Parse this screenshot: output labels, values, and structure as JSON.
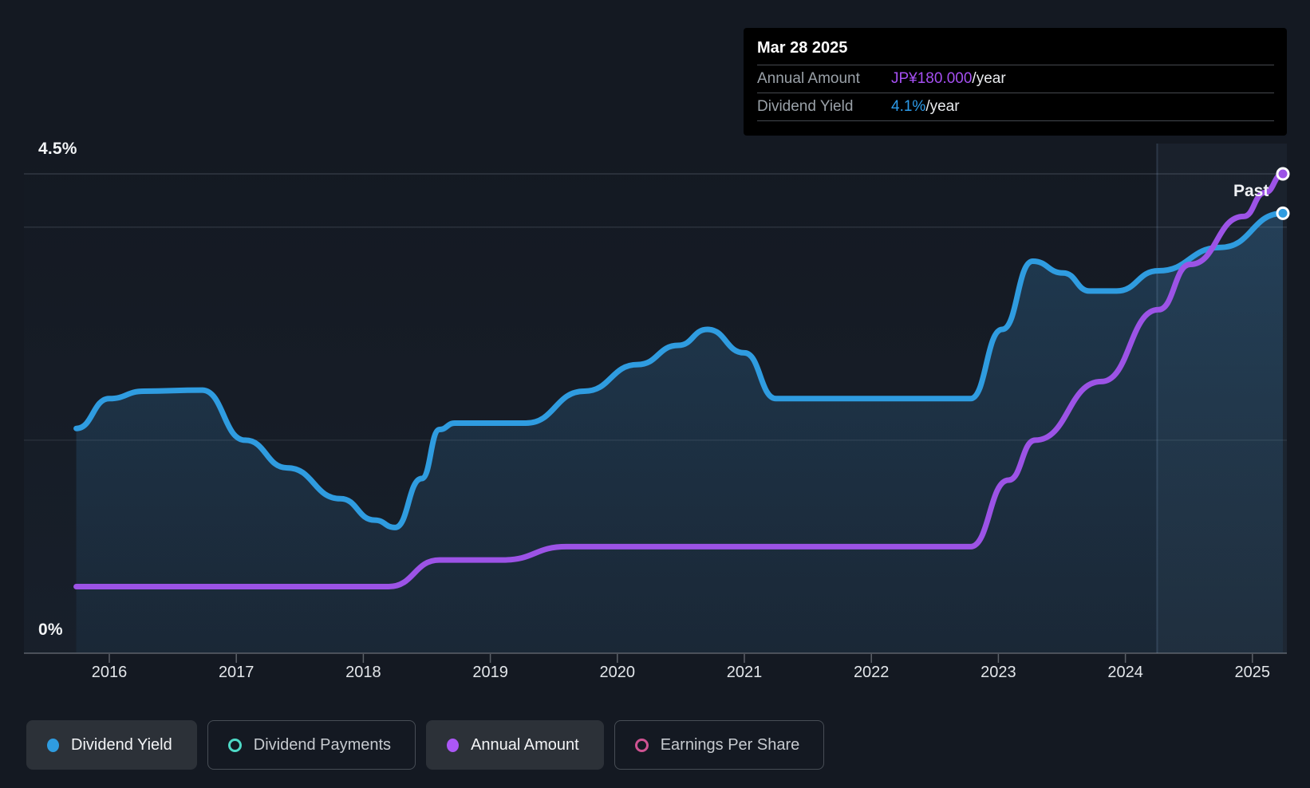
{
  "tooltip": {
    "date": "Mar 28 2025",
    "rows": [
      {
        "label": "Annual Amount",
        "value": "JP¥180.000",
        "suffix": "/year",
        "value_color": "#a54ff2"
      },
      {
        "label": "Dividend Yield",
        "value": "4.1%",
        "suffix": "/year",
        "value_color": "#2d9ceb"
      }
    ]
  },
  "legend": [
    {
      "label": "Dividend Yield",
      "color": "#2f9ce0",
      "marker": "filled",
      "active": true
    },
    {
      "label": "Dividend Payments",
      "color": "#4ed9c6",
      "marker": "outline",
      "active": false
    },
    {
      "label": "Annual Amount",
      "color": "#ab57f5",
      "marker": "filled",
      "active": true
    },
    {
      "label": "Earnings Per Share",
      "color": "#cf5392",
      "marker": "outline",
      "active": false
    }
  ],
  "chart_data": {
    "type": "area",
    "x_range": [
      2015.74,
      2025.28
    ],
    "x_ticks": [
      "2016",
      "2017",
      "2018",
      "2019",
      "2020",
      "2021",
      "2022",
      "2023",
      "2024",
      "2025"
    ],
    "y_axis": {
      "unit": "%",
      "min": 0,
      "max": 4.5,
      "labels": [
        {
          "text": "4.5%",
          "at": 4.5
        },
        {
          "text": "0%",
          "at": 0
        }
      ],
      "gridlines": [
        4.5,
        4.0,
        2.0,
        0
      ]
    },
    "past_band": {
      "label": "Past",
      "from": 2024.25,
      "to": 2025.28
    },
    "series": [
      {
        "name": "Dividend Yield",
        "unit": "%",
        "style": "area-line",
        "color": "#2f9ce0",
        "end_value": 4.1,
        "points": [
          [
            2015.74,
            2.11
          ],
          [
            2016.0,
            2.39
          ],
          [
            2016.27,
            2.46
          ],
          [
            2016.73,
            2.47
          ],
          [
            2017.07,
            2.0
          ],
          [
            2017.4,
            1.74
          ],
          [
            2017.82,
            1.45
          ],
          [
            2018.09,
            1.25
          ],
          [
            2018.25,
            1.18
          ],
          [
            2018.46,
            1.64
          ],
          [
            2018.6,
            2.1
          ],
          [
            2018.72,
            2.16
          ],
          [
            2019.28,
            2.16
          ],
          [
            2019.74,
            2.46
          ],
          [
            2020.16,
            2.71
          ],
          [
            2020.48,
            2.89
          ],
          [
            2020.71,
            3.04
          ],
          [
            2021.0,
            2.82
          ],
          [
            2021.25,
            2.39
          ],
          [
            2022.78,
            2.39
          ],
          [
            2023.03,
            3.04
          ],
          [
            2023.27,
            3.68
          ],
          [
            2023.51,
            3.57
          ],
          [
            2023.72,
            3.4
          ],
          [
            2023.93,
            3.4
          ],
          [
            2024.26,
            3.59
          ],
          [
            2024.75,
            3.81
          ],
          [
            2025.24,
            4.13
          ]
        ]
      },
      {
        "name": "Annual Amount",
        "unit": "JP¥/year",
        "style": "line",
        "color": "#9c53e6",
        "axis_max": 180,
        "end_value": 180,
        "points": [
          [
            2015.74,
            25
          ],
          [
            2018.2,
            25
          ],
          [
            2018.6,
            35
          ],
          [
            2019.1,
            35
          ],
          [
            2019.6,
            40
          ],
          [
            2022.78,
            40
          ],
          [
            2023.08,
            65
          ],
          [
            2023.29,
            80
          ],
          [
            2023.81,
            102
          ],
          [
            2024.26,
            129
          ],
          [
            2024.51,
            146
          ],
          [
            2024.93,
            164
          ],
          [
            2025.1,
            173
          ],
          [
            2025.24,
            180
          ]
        ]
      }
    ]
  }
}
